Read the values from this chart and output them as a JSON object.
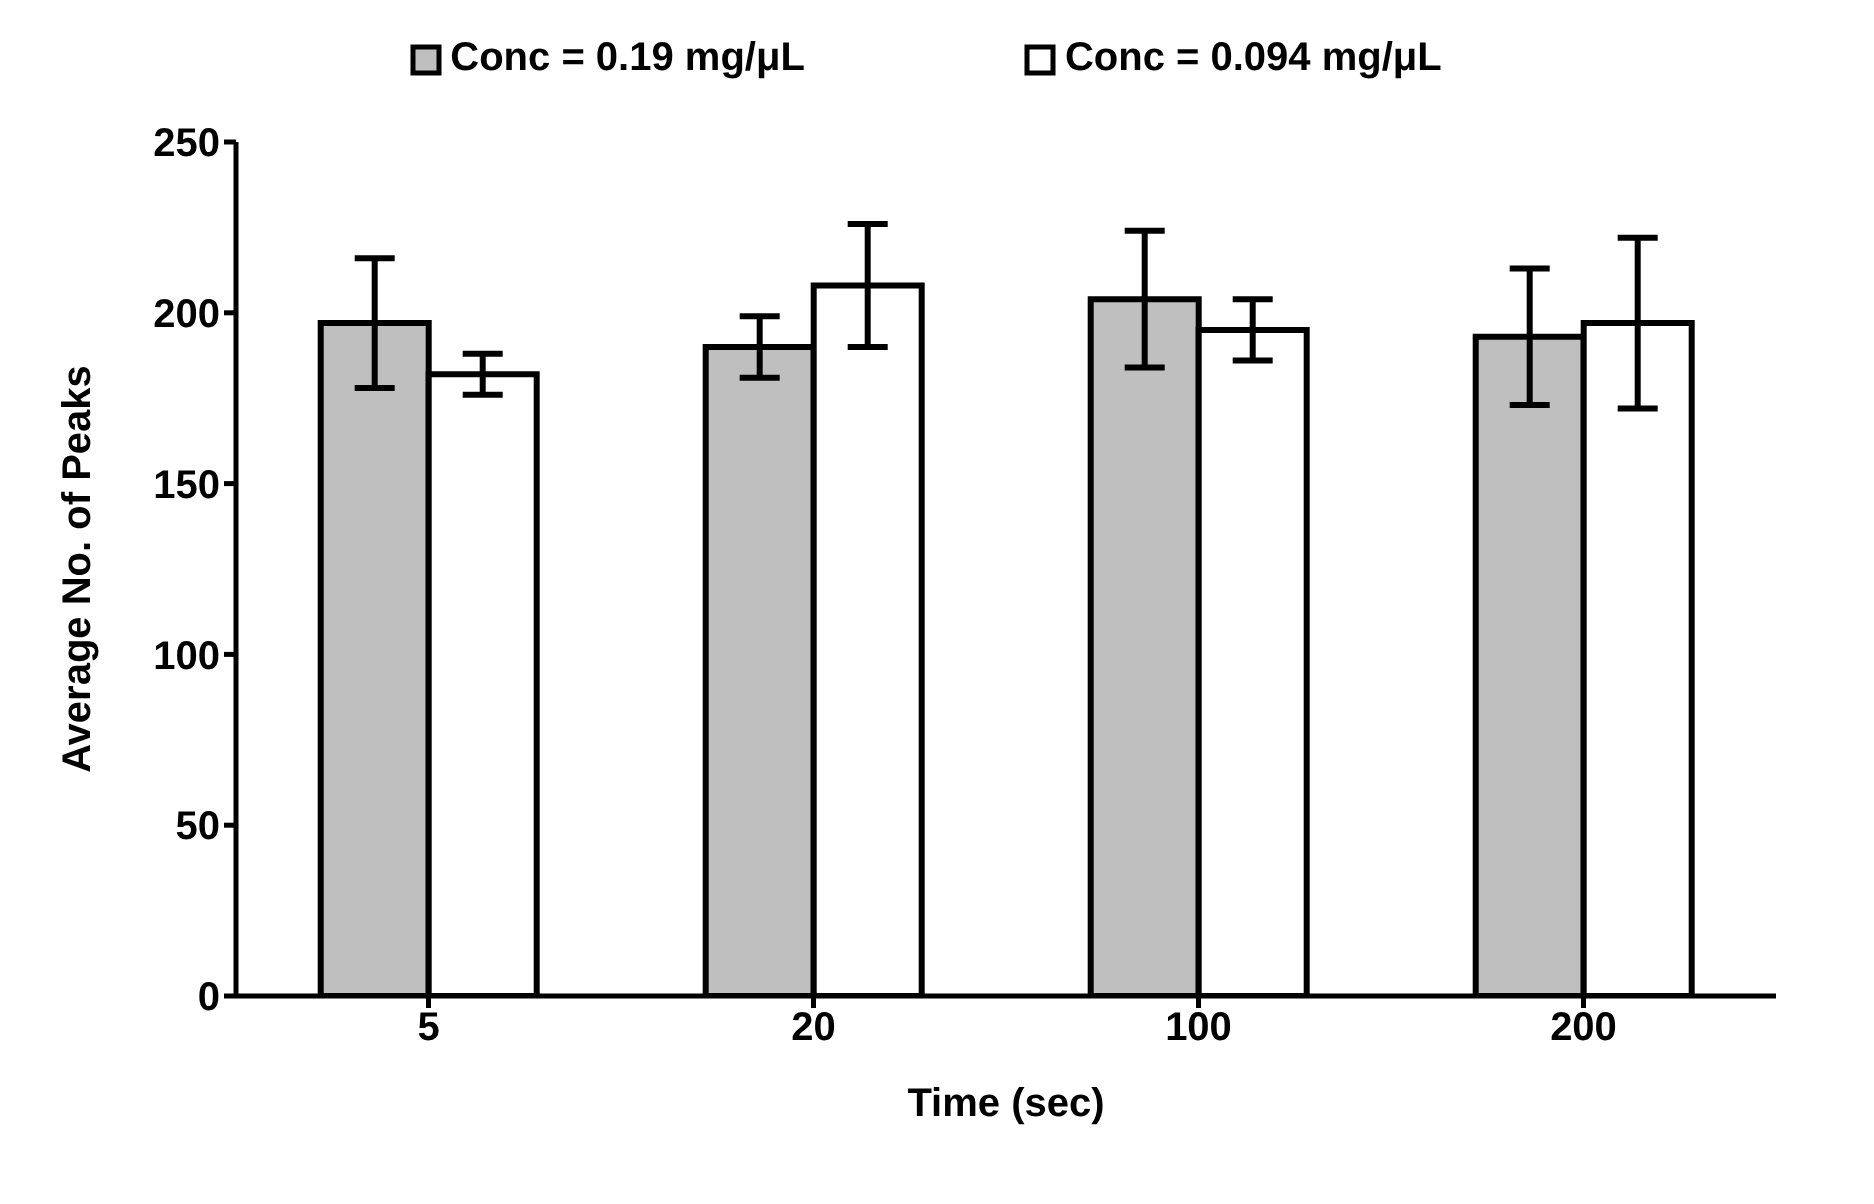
{
  "chart_data": {
    "type": "bar",
    "xlabel": "Time (sec)",
    "ylabel": "Average No. of Peaks",
    "categories": [
      "5",
      "20",
      "100",
      "200"
    ],
    "series": [
      {
        "name": "Conc = 0.19 mg/μL",
        "color": "#bfbfbf",
        "values": [
          197,
          190,
          204,
          193
        ],
        "errors": [
          19,
          9,
          20,
          20
        ]
      },
      {
        "name": "Conc = 0.094 mg/μL",
        "color": "#ffffff",
        "values": [
          182,
          208,
          195,
          197
        ],
        "errors": [
          6,
          18,
          9,
          25
        ]
      }
    ],
    "ylim": [
      0,
      250
    ],
    "yticks": [
      0,
      50,
      100,
      150,
      200,
      250
    ],
    "grid": false,
    "legend": "top"
  }
}
